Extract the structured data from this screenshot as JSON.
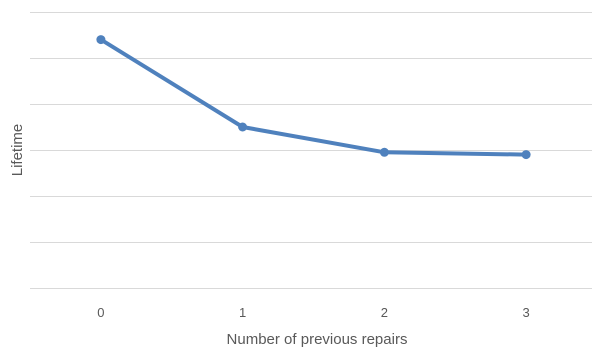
{
  "chart_data": {
    "type": "line",
    "title": "",
    "xlabel": "Number of previous repairs",
    "ylabel": "Lifetime",
    "x": [
      "0",
      "1",
      "2",
      "3"
    ],
    "series": [
      {
        "values": [
          5.4,
          3.5,
          2.95,
          2.9
        ]
      }
    ],
    "ylim": [
      0,
      6
    ],
    "y_gridlines": [
      0,
      1,
      2,
      3,
      4,
      5,
      6
    ],
    "y_tick_labels_shown": false,
    "grid": true,
    "legend": "none",
    "colors": {
      "series": "#4f81bd",
      "grid": "#d9d9d9",
      "text": "#595959"
    }
  }
}
